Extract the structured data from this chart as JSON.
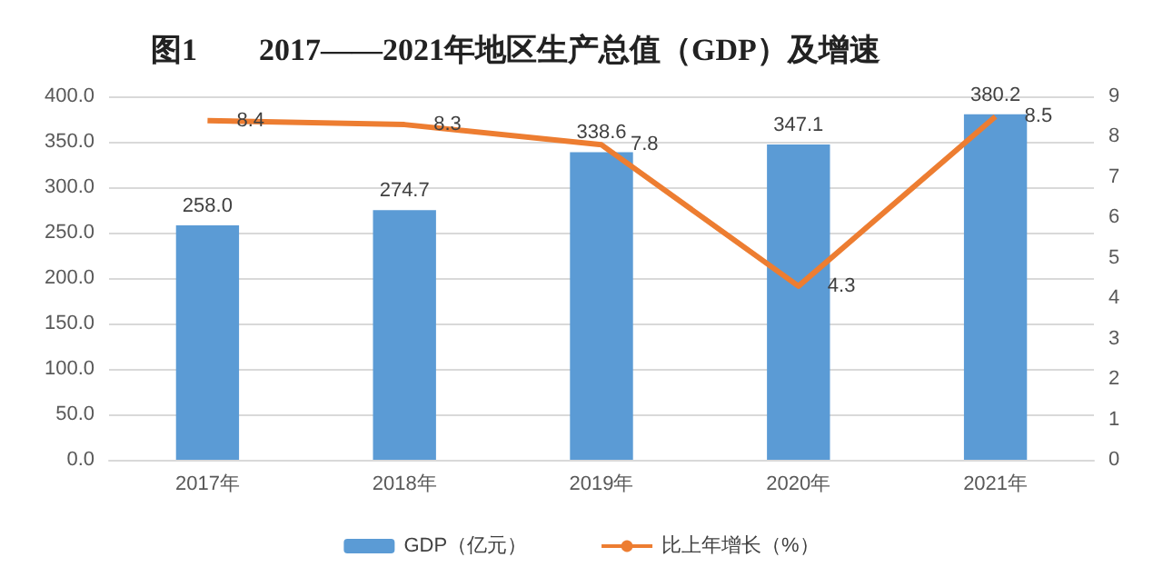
{
  "chart_data": {
    "type": "bar",
    "title": "图1　　2017——2021年地区生产总值（GDP）及增速",
    "categories": [
      "2017年",
      "2018年",
      "2019年",
      "2020年",
      "2021年"
    ],
    "series": [
      {
        "name": "GDP（亿元）",
        "color": "#5b9bd5",
        "values": [
          258.0,
          274.7,
          338.6,
          347.1,
          380.2
        ],
        "value_labels": [
          "258.0",
          "274.7",
          "338.6",
          "347.1",
          "380.2"
        ]
      },
      {
        "name": "比上年增长（%）",
        "type": "line",
        "axis": "y2",
        "color": "#ed7d31",
        "values": [
          8.4,
          8.3,
          7.8,
          4.3,
          8.5
        ],
        "value_labels": [
          "8.4",
          "8.3",
          "7.8",
          "4.3",
          "8.5"
        ]
      }
    ],
    "ylim": [
      0,
      400
    ],
    "yticks": [
      {
        "value": 0,
        "label": "0.0"
      },
      {
        "value": 50,
        "label": "50.0"
      },
      {
        "value": 100,
        "label": "100.0"
      },
      {
        "value": 150,
        "label": "150.0"
      },
      {
        "value": 200,
        "label": "200.0"
      },
      {
        "value": 250,
        "label": "250.0"
      },
      {
        "value": 300,
        "label": "300.0"
      },
      {
        "value": 350,
        "label": "350.0"
      },
      {
        "value": 400,
        "label": "400.0"
      }
    ],
    "y2lim": [
      0,
      9
    ],
    "y2ticks": [
      0,
      1,
      2,
      3,
      4,
      5,
      6,
      7,
      8,
      9
    ],
    "grid": "y",
    "legend": "bottom",
    "marker": "none",
    "line_style": "solid"
  }
}
